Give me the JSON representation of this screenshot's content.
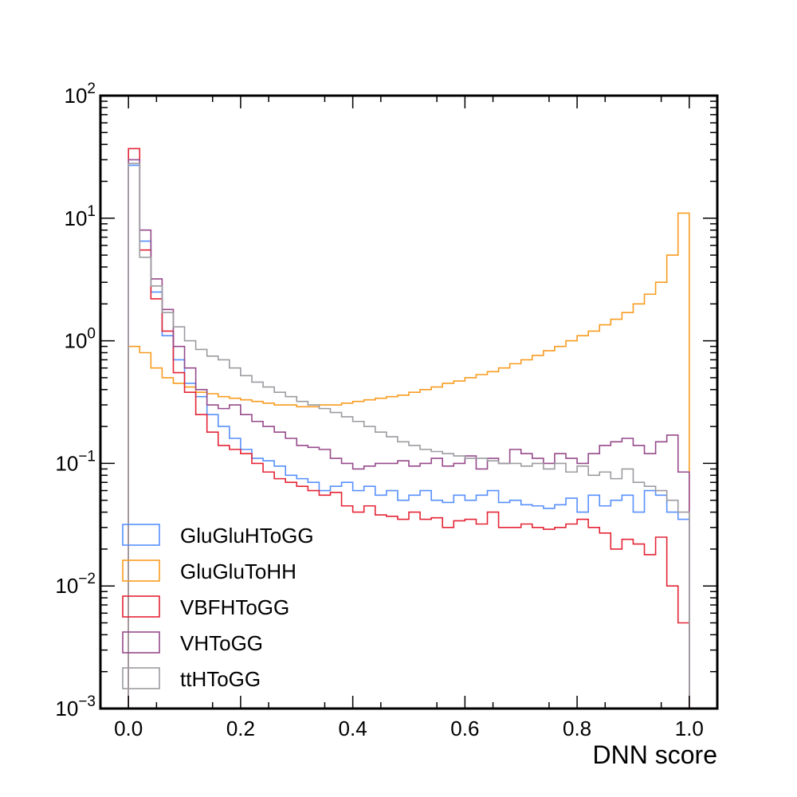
{
  "chart_data": {
    "type": "histogram-step",
    "xlabel": "DNN score",
    "ylabel": "",
    "title": "",
    "x_scale": "linear",
    "y_scale": "log",
    "xlim": [
      -0.05,
      1.05
    ],
    "ylim": [
      0.001,
      100
    ],
    "x_ticks": [
      {
        "value": 0.0,
        "label": "0.0"
      },
      {
        "value": 0.2,
        "label": "0.2"
      },
      {
        "value": 0.4,
        "label": "0.4"
      },
      {
        "value": 0.6,
        "label": "0.6"
      },
      {
        "value": 0.8,
        "label": "0.8"
      },
      {
        "value": 1.0,
        "label": "1.0"
      }
    ],
    "y_ticks": [
      {
        "value": 0.001,
        "base": "10",
        "exp": "−3"
      },
      {
        "value": 0.01,
        "base": "10",
        "exp": "−2"
      },
      {
        "value": 0.1,
        "base": "10",
        "exp": "−1"
      },
      {
        "value": 1,
        "base": "10",
        "exp": "0"
      },
      {
        "value": 10,
        "base": "10",
        "exp": "1"
      },
      {
        "value": 100,
        "base": "10",
        "exp": "2"
      }
    ],
    "bin_range": [
      0,
      1
    ],
    "n_bins": 50,
    "legend_position": "lower-left",
    "series": [
      {
        "name": "GluGluHToGG",
        "color": "#5790fc",
        "values": [
          27,
          6.5,
          2.5,
          1.1,
          0.7,
          0.45,
          0.35,
          0.25,
          0.2,
          0.16,
          0.13,
          0.11,
          0.105,
          0.095,
          0.08,
          0.075,
          0.07,
          0.06,
          0.065,
          0.07,
          0.06,
          0.065,
          0.055,
          0.06,
          0.05,
          0.055,
          0.06,
          0.05,
          0.048,
          0.055,
          0.05,
          0.055,
          0.06,
          0.048,
          0.05,
          0.046,
          0.045,
          0.043,
          0.046,
          0.052,
          0.04,
          0.055,
          0.045,
          0.05,
          0.055,
          0.04,
          0.06,
          0.055,
          0.04,
          0.035
        ]
      },
      {
        "name": "GluGluToHH",
        "color": "#f89c20",
        "values": [
          0.9,
          0.8,
          0.6,
          0.5,
          0.45,
          0.42,
          0.38,
          0.37,
          0.35,
          0.34,
          0.33,
          0.32,
          0.31,
          0.3,
          0.3,
          0.29,
          0.29,
          0.3,
          0.3,
          0.31,
          0.32,
          0.33,
          0.34,
          0.35,
          0.36,
          0.38,
          0.4,
          0.42,
          0.45,
          0.47,
          0.5,
          0.53,
          0.56,
          0.6,
          0.65,
          0.7,
          0.76,
          0.83,
          0.9,
          1.0,
          1.1,
          1.2,
          1.35,
          1.5,
          1.7,
          2.0,
          2.4,
          3.0,
          5.0,
          11
        ]
      },
      {
        "name": "VBFHToGG",
        "color": "#e42536",
        "values": [
          37,
          5.5,
          2.2,
          1.2,
          0.55,
          0.38,
          0.25,
          0.18,
          0.14,
          0.13,
          0.12,
          0.1,
          0.085,
          0.075,
          0.07,
          0.065,
          0.06,
          0.055,
          0.058,
          0.045,
          0.04,
          0.045,
          0.038,
          0.037,
          0.035,
          0.04,
          0.035,
          0.036,
          0.03,
          0.034,
          0.035,
          0.032,
          0.04,
          0.03,
          0.03,
          0.032,
          0.03,
          0.029,
          0.03,
          0.032,
          0.035,
          0.03,
          0.027,
          0.02,
          0.024,
          0.022,
          0.018,
          0.025,
          0.01,
          0.005
        ]
      },
      {
        "name": "VHToGG",
        "color": "#964a8b",
        "values": [
          30,
          8,
          3.2,
          1.8,
          0.9,
          0.6,
          0.4,
          0.3,
          0.28,
          0.3,
          0.25,
          0.22,
          0.2,
          0.18,
          0.16,
          0.14,
          0.135,
          0.13,
          0.11,
          0.1,
          0.09,
          0.095,
          0.1,
          0.1,
          0.105,
          0.095,
          0.1,
          0.11,
          0.095,
          0.1,
          0.115,
          0.09,
          0.11,
          0.1,
          0.13,
          0.12,
          0.11,
          0.1,
          0.12,
          0.11,
          0.1,
          0.12,
          0.14,
          0.15,
          0.16,
          0.14,
          0.12,
          0.15,
          0.17,
          0.085
        ]
      },
      {
        "name": "ttHToGG",
        "color": "#9c9ca1",
        "values": [
          28,
          4.8,
          2.8,
          1.7,
          1.3,
          1.0,
          0.85,
          0.75,
          0.7,
          0.6,
          0.52,
          0.46,
          0.42,
          0.38,
          0.35,
          0.32,
          0.3,
          0.28,
          0.26,
          0.24,
          0.22,
          0.2,
          0.18,
          0.165,
          0.15,
          0.14,
          0.13,
          0.125,
          0.12,
          0.115,
          0.11,
          0.11,
          0.105,
          0.1,
          0.1,
          0.095,
          0.1,
          0.09,
          0.1,
          0.085,
          0.095,
          0.08,
          0.085,
          0.075,
          0.09,
          0.07,
          0.065,
          0.06,
          0.05,
          0.04
        ]
      }
    ]
  }
}
